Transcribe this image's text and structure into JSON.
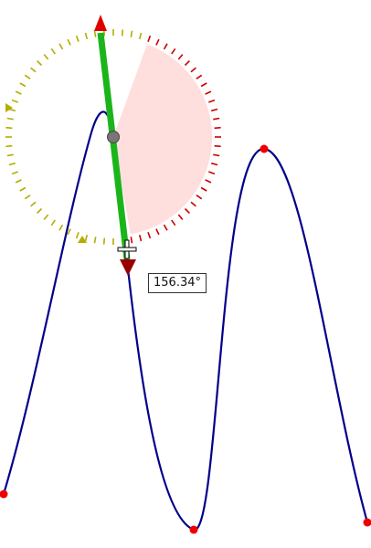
{
  "angle_readout": "156.34°",
  "gizmo": {
    "angle_degrees": 156.34,
    "colors": {
      "dial_ticks": "#b5ac00",
      "sweep_ticks": "#cc0000",
      "sweep_fill": "#ffdede",
      "axis_shaft": "#1bb51b",
      "arrow_head_up": "#dd0000",
      "arrow_head_down": "#990000",
      "pivot": "#777777",
      "marker_up": "#b5ac00"
    }
  },
  "curve": {
    "color": "#00008b",
    "control_point_color": "#ee0000",
    "control_points": 4
  },
  "cursor": {
    "icon": "move-cursor-icon"
  }
}
